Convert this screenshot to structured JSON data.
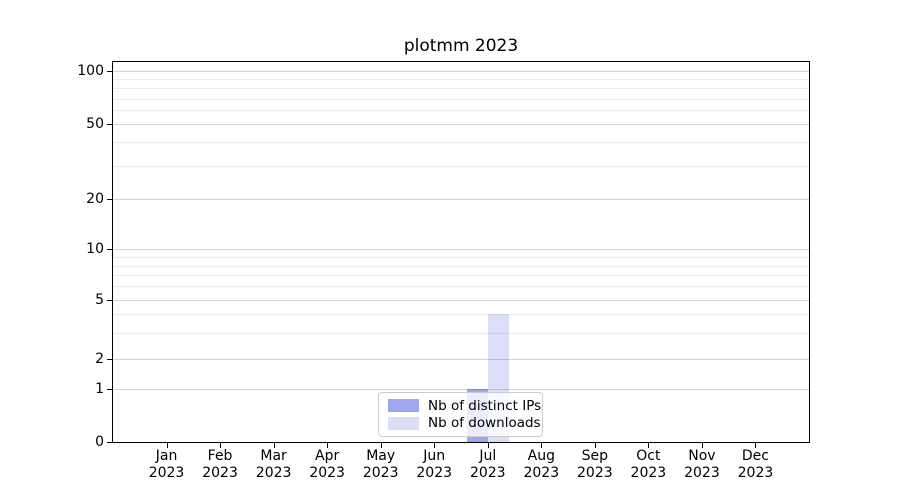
{
  "figure": {
    "title": "plotmm 2023"
  },
  "colors": {
    "background": "#ffffff",
    "axis_spine": "#000000",
    "grid_major": "rgba(0,0,0,0.17)",
    "grid_minor": "rgba(0,0,0,0.08)",
    "series_distinct_ips": "#9ea6ef",
    "series_downloads": "#dadef7",
    "legend_border": "#cccccc"
  },
  "chart_data": {
    "type": "bar",
    "title": "plotmm 2023",
    "categories": [
      "Jan",
      "Feb",
      "Mar",
      "Apr",
      "May",
      "Jun",
      "Jul",
      "Aug",
      "Sep",
      "Oct",
      "Nov",
      "Dec"
    ],
    "category_year": "2023",
    "series": [
      {
        "name": "Nb of distinct IPs",
        "color": "#9ea6ef",
        "values": [
          0,
          0,
          0,
          0,
          0,
          0,
          1,
          0,
          0,
          0,
          0,
          0
        ]
      },
      {
        "name": "Nb of downloads",
        "color": "#dadef7",
        "values": [
          0,
          0,
          0,
          0,
          0,
          0,
          4,
          0,
          0,
          0,
          0,
          0
        ]
      }
    ],
    "y_axis": {
      "scale": "symlog",
      "range": [
        0,
        100
      ],
      "major_ticks": [
        0,
        1,
        2,
        5,
        10,
        20,
        50,
        100
      ],
      "minor_gridlines": [
        3,
        4,
        6,
        7,
        8,
        9,
        30,
        40,
        60,
        70,
        80,
        90
      ]
    },
    "x_axis": {
      "label_format": "month over year, two lines"
    },
    "legend": {
      "position": "lower center",
      "entries": [
        "Nb of distinct IPs",
        "Nb of downloads"
      ]
    },
    "grid": true
  }
}
